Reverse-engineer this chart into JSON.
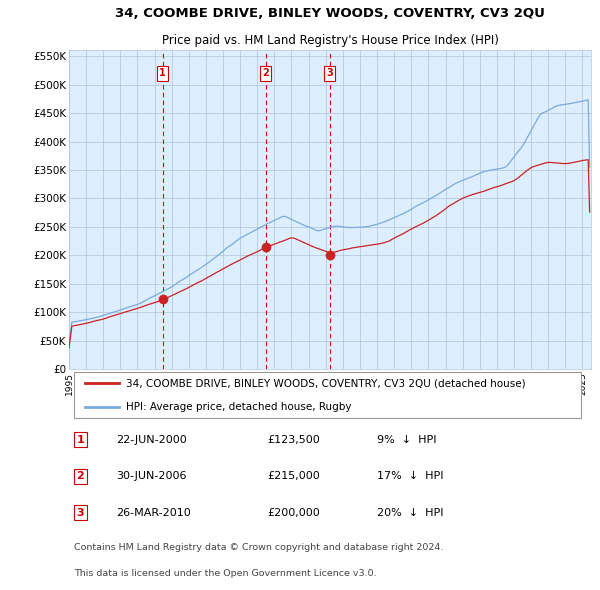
{
  "title": "34, COOMBE DRIVE, BINLEY WOODS, COVENTRY, CV3 2QU",
  "subtitle": "Price paid vs. HM Land Registry's House Price Index (HPI)",
  "legend_line1": "34, COOMBE DRIVE, BINLEY WOODS, COVENTRY, CV3 2QU (detached house)",
  "legend_line2": "HPI: Average price, detached house, Rugby",
  "footer1": "Contains HM Land Registry data © Crown copyright and database right 2024.",
  "footer2": "This data is licensed under the Open Government Licence v3.0.",
  "transactions": [
    {
      "num": 1,
      "date": "22-JUN-2000",
      "price": 123500,
      "pct": "9%",
      "dir": "↓"
    },
    {
      "num": 2,
      "date": "30-JUN-2006",
      "price": 215000,
      "pct": "17%",
      "dir": "↓"
    },
    {
      "num": 3,
      "date": "26-MAR-2010",
      "price": 200000,
      "pct": "20%",
      "dir": "↓"
    }
  ],
  "transaction_dates_decimal": [
    2000.47,
    2006.49,
    2010.23
  ],
  "transaction_prices": [
    123500,
    215000,
    200000
  ],
  "hpi_color": "#7aaadd",
  "price_color": "#cc2222",
  "vline_color": "#cc0000",
  "bg_color": "#ddeeff",
  "grid_color": "#b0c4d8",
  "ylim": [
    0,
    560000
  ],
  "xlim_start": 1995.0,
  "xlim_end": 2025.5,
  "yticks": [
    0,
    50000,
    100000,
    150000,
    200000,
    250000,
    300000,
    350000,
    400000,
    450000,
    500000,
    550000
  ],
  "ytick_labels": [
    "£0",
    "£50K",
    "£100K",
    "£150K",
    "£200K",
    "£250K",
    "£300K",
    "£350K",
    "£400K",
    "£450K",
    "£500K",
    "£550K"
  ]
}
